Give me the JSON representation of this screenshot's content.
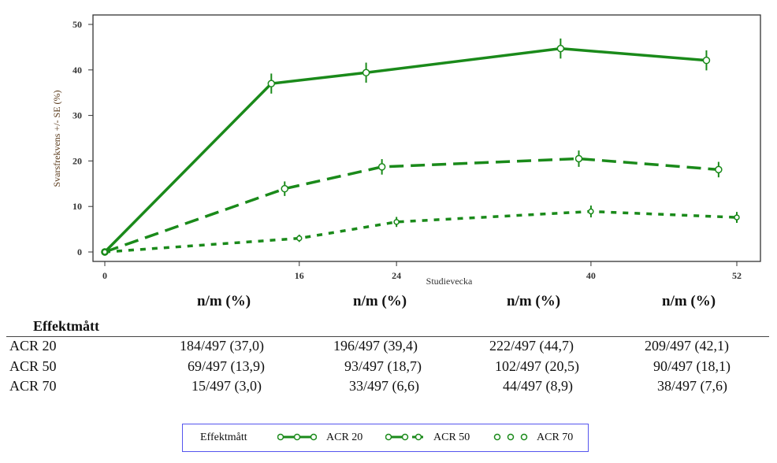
{
  "chart_data": {
    "type": "line",
    "title": "",
    "xlabel": "Studievecka",
    "ylabel": "Svarsfrekvens +/- SE (%)",
    "xticks": [
      0,
      16,
      24,
      40,
      52
    ],
    "yticks": [
      0,
      10,
      20,
      30,
      40,
      50
    ],
    "xlim": [
      -1,
      54
    ],
    "ylim": [
      -2,
      52
    ],
    "color": "#1a8a1a",
    "series": [
      {
        "name": "ACR 20",
        "style": "solid",
        "x": [
          0,
          13.7,
          21.5,
          37.5,
          49.5
        ],
        "y": [
          0,
          37.0,
          39.4,
          44.7,
          42.1
        ],
        "se": [
          0,
          2.2,
          2.2,
          2.2,
          2.2
        ]
      },
      {
        "name": "ACR 50",
        "style": "dashed",
        "x": [
          0,
          14.8,
          22.8,
          39.0,
          50.5
        ],
        "y": [
          0,
          13.9,
          18.7,
          20.5,
          18.1
        ],
        "se": [
          0,
          1.6,
          1.7,
          1.8,
          1.7
        ]
      },
      {
        "name": "ACR 70",
        "style": "dotted",
        "x": [
          0,
          16,
          24,
          40,
          52
        ],
        "y": [
          0,
          3.0,
          6.6,
          8.9,
          7.6
        ],
        "se": [
          0,
          0.8,
          1.1,
          1.3,
          1.2
        ]
      }
    ],
    "legend": {
      "title": "Effektmått",
      "placement": "bottom"
    }
  },
  "table": {
    "col_header": "n/m (%)",
    "row_header": "Effektmått",
    "rows": [
      {
        "label": "ACR 20",
        "values": [
          "184/497 (37,0)",
          "196/497 (39,4)",
          "222/497 (44,7)",
          "209/497 (42,1)"
        ]
      },
      {
        "label": "ACR 50",
        "values": [
          "69/497 (13,9)",
          "93/497 (18,7)",
          "102/497 (20,5)",
          "90/497 (18,1)"
        ]
      },
      {
        "label": "ACR 70",
        "values": [
          "15/497 (3,0)",
          "33/497 (6,6)",
          "44/497 (8,9)",
          "38/497 (7,6)"
        ]
      }
    ]
  }
}
